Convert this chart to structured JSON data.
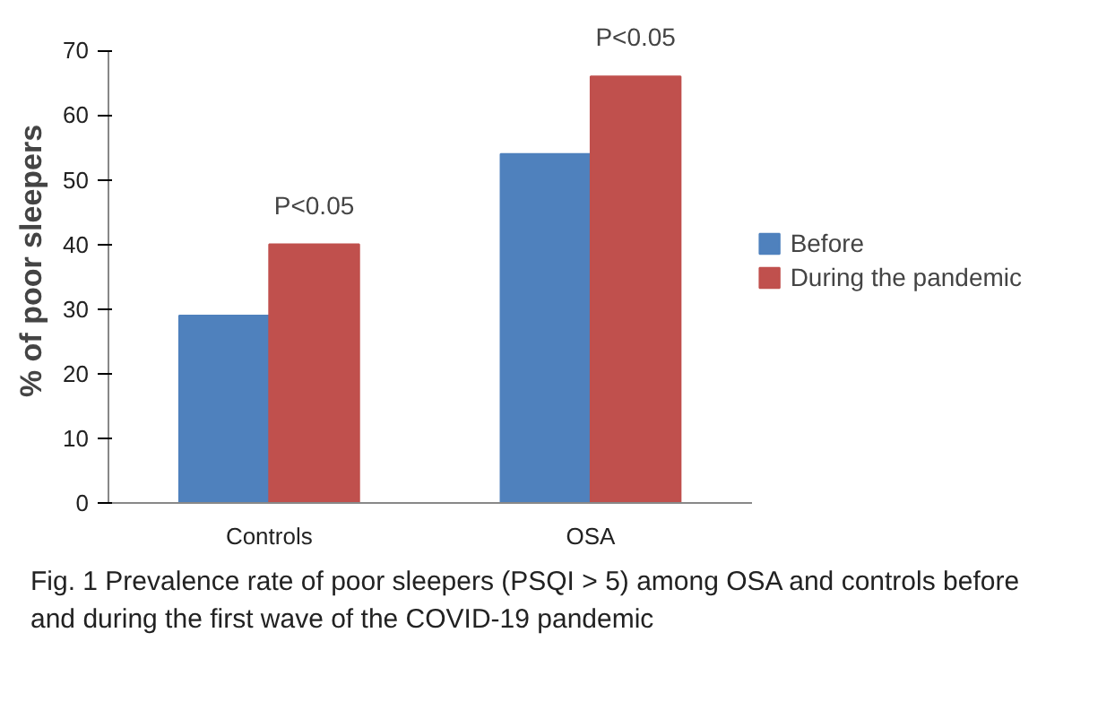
{
  "chart_data": {
    "type": "bar",
    "ylabel": "% of poor sleepers",
    "categories": [
      "Controls",
      "OSA"
    ],
    "series": [
      {
        "name": "Before",
        "color": "#4f81bd",
        "values": [
          29,
          54
        ]
      },
      {
        "name": "During the pandemic",
        "color": "#c0504d",
        "values": [
          40,
          66
        ]
      }
    ],
    "ylim": [
      0,
      70
    ],
    "yticks": [
      0,
      10,
      20,
      30,
      40,
      50,
      60,
      70
    ],
    "grid": false,
    "legend": "right",
    "annotations": [
      {
        "text": "P<0.05",
        "x": "Controls",
        "y": 40
      },
      {
        "text": "P<0.05",
        "x": "OSA",
        "y": 66
      },
      "Fig. 1  Prevalence rate of poor sleepers (PSQI > 5) among OSA and controls before and during the first wave of the COVID-19 pandemic"
    ]
  }
}
